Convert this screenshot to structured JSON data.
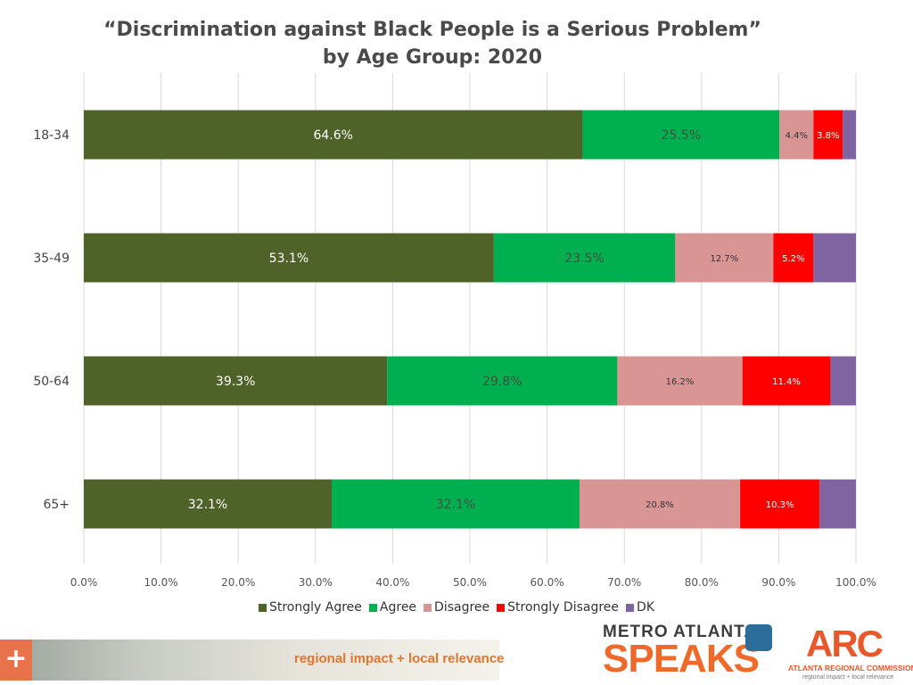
{
  "chart_data": {
    "type": "bar",
    "orientation": "horizontal",
    "stacked": true,
    "title": "“Discrimination against Black People is a Serious Problem”",
    "subtitle": "by Age Group: 2020",
    "categories": [
      "18-34",
      "35-49",
      "50-64",
      "65+"
    ],
    "series": [
      {
        "name": "Strongly Agree",
        "color": "#4f6228",
        "values": [
          64.6,
          53.1,
          39.3,
          32.1
        ],
        "labels": [
          "64.6%",
          "53.1%",
          "39.3%",
          "32.1%"
        ]
      },
      {
        "name": "Agree",
        "color": "#00b050",
        "values": [
          25.5,
          23.5,
          29.8,
          32.1
        ],
        "labels": [
          "25.5%",
          "23.5%",
          "29.8%",
          "32.1%"
        ]
      },
      {
        "name": "Disagree",
        "color": "#d99594",
        "values": [
          4.4,
          12.7,
          16.2,
          20.8
        ],
        "labels": [
          "4.4%",
          "12.7%",
          "16.2%",
          "20.8%"
        ]
      },
      {
        "name": "Strongly Disagree",
        "color": "#ff0000",
        "values": [
          3.8,
          5.2,
          11.4,
          10.3
        ],
        "labels": [
          "3.8%",
          "5.2%",
          "11.4%",
          "10.3%"
        ]
      },
      {
        "name": "DK",
        "color": "#8064a2",
        "values": [
          1.7,
          5.5,
          3.3,
          4.7
        ],
        "labels": [
          "",
          "",
          "",
          ""
        ]
      }
    ],
    "xlim": [
      0,
      100
    ],
    "xticks": [
      "0.0%",
      "10.0%",
      "20.0%",
      "30.0%",
      "40.0%",
      "50.0%",
      "60.0%",
      "70.0%",
      "80.0%",
      "90.0%",
      "100.0%"
    ],
    "grid": true,
    "legend_position": "bottom"
  },
  "footer": {
    "tagline": "regional impact + local relevance",
    "plus": "+",
    "metro_top": "METRO ATLANTA",
    "metro_bottom": "SPEAKS",
    "arc_logo": "ARC",
    "arc_name": "ATLANTA REGIONAL COMMISSION",
    "arc_tag": "regional impact + local relevance"
  }
}
